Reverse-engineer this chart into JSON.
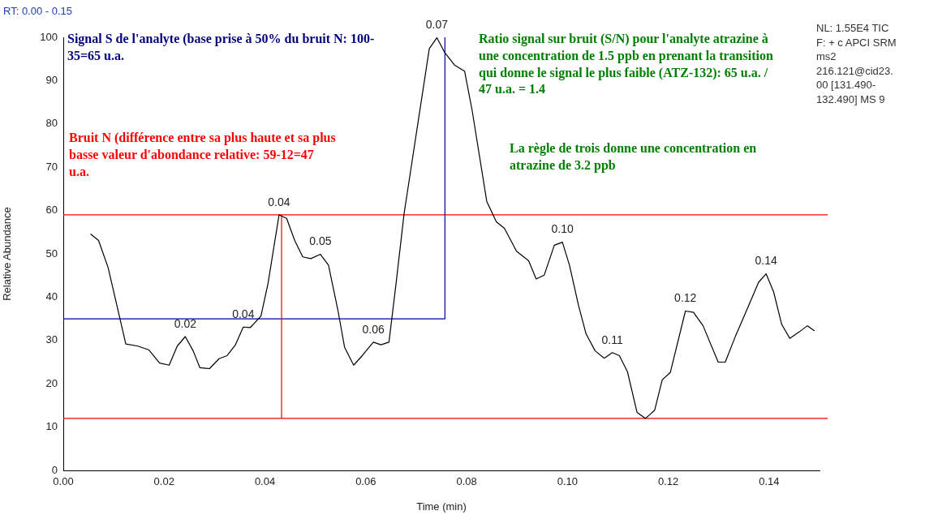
{
  "chart_data": {
    "type": "line",
    "xlabel": "Time (min)",
    "ylabel": "Relative Abundance",
    "xlim": [
      0,
      0.15
    ],
    "xticks": [
      {
        "value": 0,
        "label": "0.00"
      },
      {
        "value": 0.02,
        "label": "0.02"
      },
      {
        "value": 0.04,
        "label": "0.04"
      },
      {
        "value": 0.06,
        "label": "0.06"
      },
      {
        "value": 0.08,
        "label": "0.08"
      },
      {
        "value": 0.1,
        "label": "0.10"
      },
      {
        "value": 0.12,
        "label": "0.12"
      },
      {
        "value": 0.14,
        "label": "0.14"
      }
    ],
    "ylim": [
      0,
      100
    ],
    "yticks": [
      0,
      10,
      20,
      30,
      40,
      50,
      60,
      70,
      80,
      90,
      100
    ],
    "grid": false,
    "legend": false,
    "marker": "none",
    "line_style": "solid",
    "series": [
      {
        "color": "#000000",
        "x": [
          0.0054,
          0.007,
          0.0089,
          0.0124,
          0.0148,
          0.017,
          0.0191,
          0.021,
          0.0226,
          0.0242,
          0.0258,
          0.0271,
          0.029,
          0.0309,
          0.0325,
          0.0341,
          0.0357,
          0.0371,
          0.0392,
          0.0406,
          0.0428,
          0.0443,
          0.0459,
          0.0475,
          0.0491,
          0.051,
          0.0526,
          0.0545,
          0.0558,
          0.0576,
          0.0593,
          0.0615,
          0.063,
          0.0646,
          0.066,
          0.0676,
          0.0726,
          0.0741,
          0.0757,
          0.0776,
          0.0796,
          0.0811,
          0.084,
          0.0859,
          0.0875,
          0.0899,
          0.0923,
          0.0938,
          0.0954,
          0.0974,
          0.099,
          0.1004,
          0.1022,
          0.1037,
          0.1055,
          0.1073,
          0.1089,
          0.1103,
          0.1119,
          0.1138,
          0.1155,
          0.1173,
          0.1188,
          0.1204,
          0.1234,
          0.125,
          0.1269,
          0.1299,
          0.1313,
          0.1334,
          0.136,
          0.1379,
          0.1394,
          0.1409,
          0.1425,
          0.1441,
          0.146,
          0.1476,
          0.149
        ],
        "values": [
          54.6,
          53.1,
          46.8,
          29.2,
          28.7,
          27.8,
          24.8,
          24.3,
          28.7,
          30.9,
          27.5,
          23.7,
          23.5,
          25.8,
          26.5,
          28.9,
          33.1,
          33.0,
          35.6,
          43.1,
          59.0,
          58.2,
          53.1,
          49.3,
          48.9,
          49.9,
          47.4,
          36.8,
          28.4,
          24.3,
          26.5,
          29.6,
          29.0,
          29.6,
          43.1,
          59.3,
          97.4,
          99.9,
          96.4,
          93.6,
          92.2,
          83.1,
          62.1,
          57.4,
          55.9,
          50.6,
          48.4,
          44.2,
          45.1,
          52.0,
          52.7,
          47.4,
          38.1,
          31.5,
          27.6,
          25.9,
          27.2,
          26.5,
          22.8,
          13.4,
          12.0,
          13.9,
          20.9,
          22.6,
          36.8,
          36.5,
          33.4,
          25.0,
          25.0,
          31.2,
          38.2,
          43.4,
          45.4,
          41.2,
          33.7,
          30.5,
          32.0,
          33.4,
          32.2
        ]
      },
      {
        "type": "line",
        "color": "#ff0000",
        "x": [
          0.0433,
          0.0433
        ],
        "values": [
          12,
          59
        ]
      },
      {
        "type": "line",
        "color": "#0000a0",
        "x": [
          0,
          0.0757,
          0.0757
        ],
        "values": [
          35,
          35,
          100
        ]
      }
    ],
    "ref_lines": [
      {
        "axis": "y",
        "value": 59,
        "color": "#ff0000"
      },
      {
        "axis": "y",
        "value": 12,
        "color": "#ff0000"
      }
    ],
    "annotations": [
      "RT: 0.00 - 0.15",
      "NL: 1.55E4 TIC F: + c APCI SRM ms2 216.121@cid23.00 [131.490-132.490] MS 9",
      "Signal S de l'analyte (base prise à 50% du bruit N: 100-35=65 u.a.",
      "Bruit N (différence entre sa plus haute et sa plus basse valeur d'abondance relative: 59-12=47 u.a.",
      "Ratio signal sur bruit (S/N) pour l'analyte atrazine à une concentration de 1.5 ppb en prenant la transition qui donne le signal le plus faible (ATZ-132): 65 u.a. / 47 u.a. = 1.4",
      "La règle de trois donne une concentration en atrazine de 3.2 ppb",
      {
        "text": "0.02",
        "x": 0.0242,
        "y": 30.9
      },
      {
        "text": "0.04",
        "x": 0.0357,
        "y": 33.1
      },
      {
        "text": "0.04",
        "x": 0.0428,
        "y": 59.0
      },
      {
        "text": "0.05",
        "x": 0.051,
        "y": 49.9
      },
      {
        "text": "0.06",
        "x": 0.0615,
        "y": 29.6
      },
      {
        "text": "0.07",
        "x": 0.0741,
        "y": 99.9
      },
      {
        "text": "0.10",
        "x": 0.099,
        "y": 52.7
      },
      {
        "text": "0.11",
        "x": 0.1089,
        "y": 27.2
      },
      {
        "text": "0.12",
        "x": 0.1234,
        "y": 36.8
      },
      {
        "text": "0.14",
        "x": 0.1394,
        "y": 45.4
      }
    ]
  }
}
